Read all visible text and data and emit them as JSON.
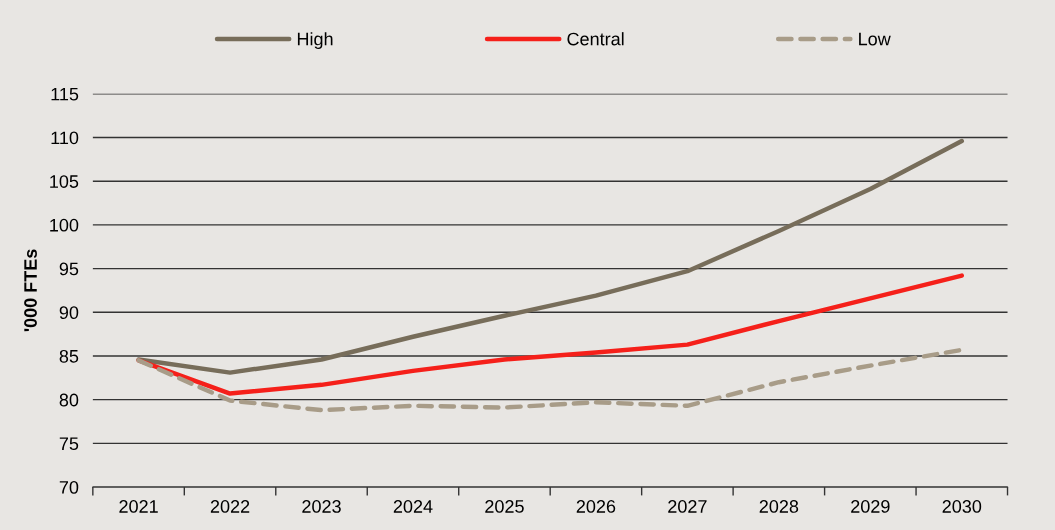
{
  "chart_data": {
    "type": "line",
    "categories": [
      "2021",
      "2022",
      "2023",
      "2024",
      "2025",
      "2026",
      "2027",
      "2028",
      "2029",
      "2030"
    ],
    "series": [
      {
        "name": "High",
        "color": "#776d5a",
        "line_style": "solid",
        "values": [
          84.6,
          83.1,
          84.6,
          87.2,
          89.6,
          91.9,
          94.7,
          99.3,
          104.1,
          109.6
        ]
      },
      {
        "name": "Central",
        "color": "#f5201a",
        "line_style": "solid",
        "values": [
          84.5,
          80.7,
          81.7,
          83.3,
          84.6,
          85.4,
          86.3,
          89.0,
          91.6,
          94.2
        ]
      },
      {
        "name": "Low",
        "color": "#a89c88",
        "line_style": "dashed",
        "values": [
          84.5,
          79.9,
          78.8,
          79.3,
          79.1,
          79.7,
          79.3,
          82.0,
          83.9,
          85.7
        ]
      }
    ],
    "ylabel": "'000 FTEs",
    "ylim": [
      70,
      115
    ],
    "yticks": [
      70,
      75,
      80,
      85,
      90,
      95,
      100,
      105,
      110,
      115
    ],
    "grid": "y",
    "legend": "top"
  }
}
